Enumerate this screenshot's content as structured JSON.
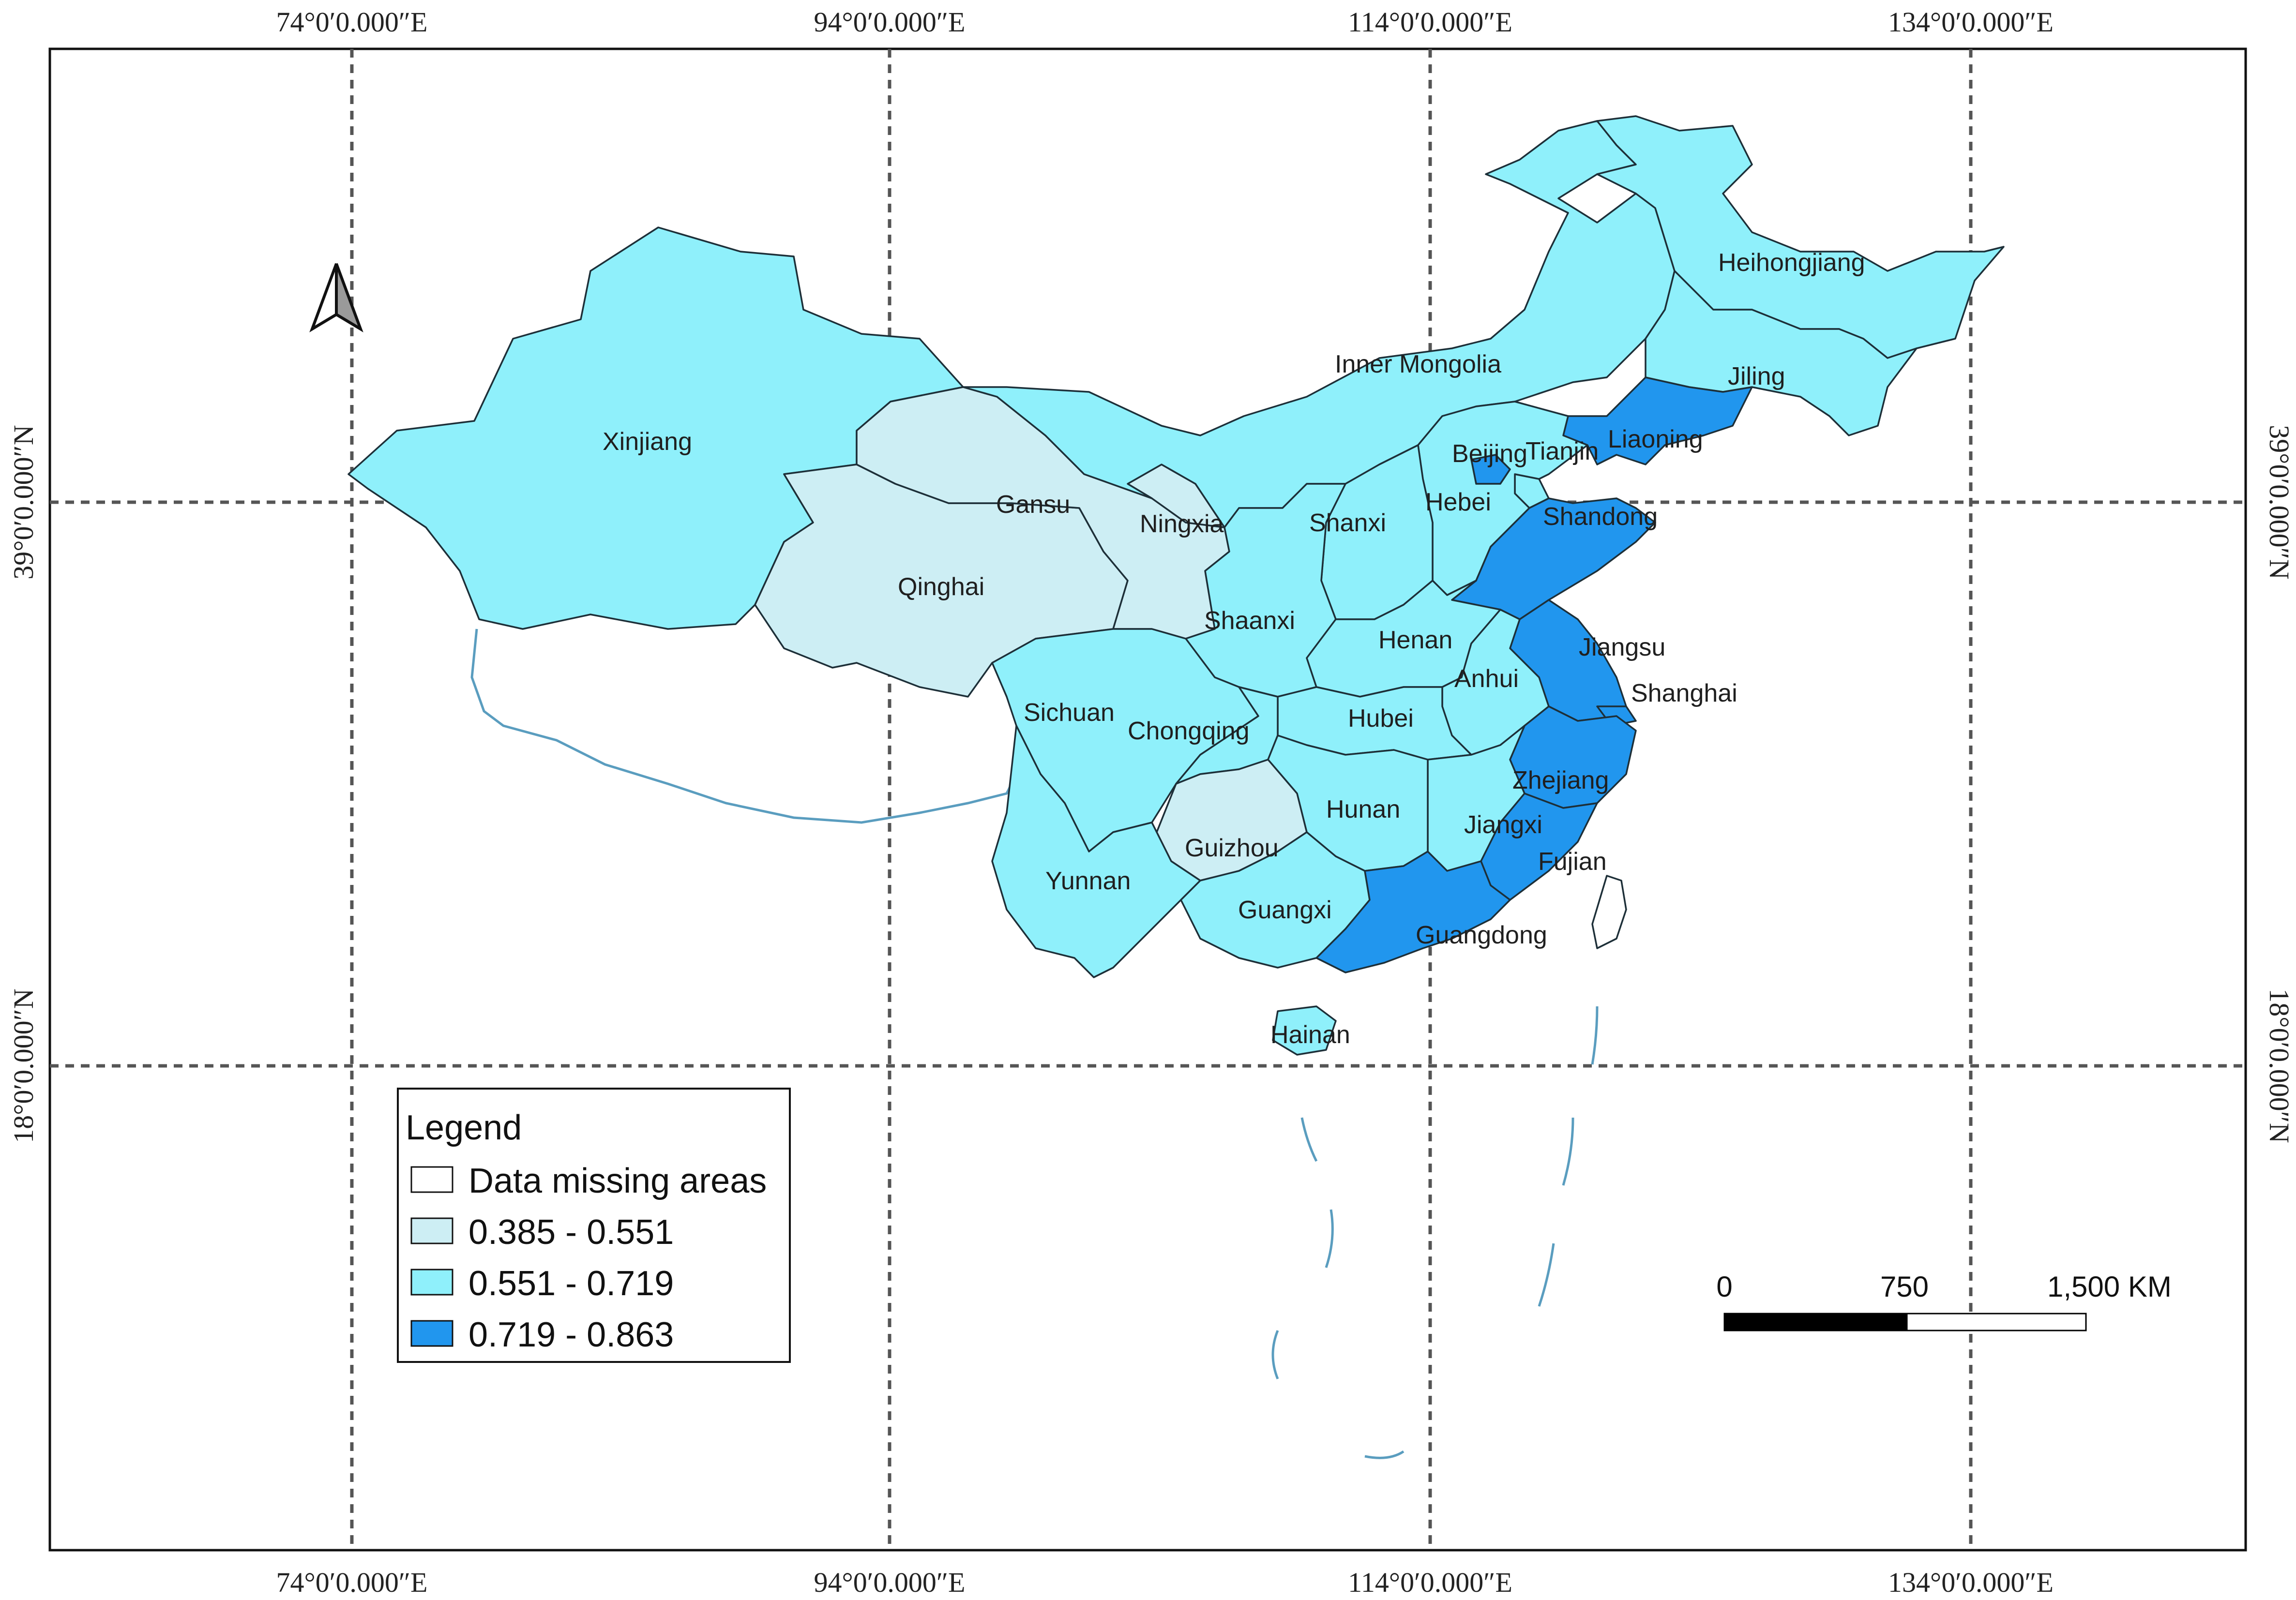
{
  "map": {
    "colors": {
      "low": "#cdeef4",
      "mid": "#8ff0fb",
      "high": "#2196ee",
      "missing": "#ffffff",
      "boundary": "#5a9dbf"
    },
    "top_ticks": [
      "74°0′0.000″E",
      "94°0′0.000″E",
      "114°0′0.000″E",
      "134°0′0.000″E"
    ],
    "bottom_ticks": [
      "74°0′0.000″E",
      "94°0′0.000″E",
      "114°0′0.000″E",
      "134°0′0.000″E"
    ],
    "left_ticks": [
      "39°0′0.000″N",
      "18°0′0.000″N"
    ],
    "right_ticks": [
      "39°0′0.000″N",
      "18°0′0.000″N"
    ],
    "north_arrow": "north-arrow-icon",
    "provinces": [
      {
        "name": "Xinjiang",
        "class": "mid"
      },
      {
        "name": "Gansu",
        "class": "low"
      },
      {
        "name": "Qinghai",
        "class": "low"
      },
      {
        "name": "Ningxia",
        "class": "low"
      },
      {
        "name": "Inner Mongolia",
        "class": "mid"
      },
      {
        "name": "Heihongjiang",
        "class": "mid"
      },
      {
        "name": "Jiling",
        "class": "mid"
      },
      {
        "name": "Liaoning",
        "class": "high"
      },
      {
        "name": "Beijing",
        "class": "high"
      },
      {
        "name": "Tianjin",
        "class": "mid"
      },
      {
        "name": "Hebei",
        "class": "mid"
      },
      {
        "name": "Shanxi",
        "class": "mid"
      },
      {
        "name": "Shaanxi",
        "class": "mid"
      },
      {
        "name": "Shandong",
        "class": "high"
      },
      {
        "name": "Henan",
        "class": "mid"
      },
      {
        "name": "Jiangsu",
        "class": "high"
      },
      {
        "name": "Anhui",
        "class": "mid"
      },
      {
        "name": "Shanghai",
        "class": "high"
      },
      {
        "name": "Sichuan",
        "class": "mid"
      },
      {
        "name": "Chongqing",
        "class": "mid"
      },
      {
        "name": "Hubei",
        "class": "mid"
      },
      {
        "name": "Zhejiang",
        "class": "high"
      },
      {
        "name": "Hunan",
        "class": "mid"
      },
      {
        "name": "Jiangxi",
        "class": "mid"
      },
      {
        "name": "Guizhou",
        "class": "low"
      },
      {
        "name": "Fujian",
        "class": "high"
      },
      {
        "name": "Yunnan",
        "class": "mid"
      },
      {
        "name": "Guangxi",
        "class": "mid"
      },
      {
        "name": "Guangdong",
        "class": "high"
      },
      {
        "name": "Hainan",
        "class": "mid"
      }
    ],
    "legend": {
      "title": "Legend",
      "items": [
        {
          "label": "Data missing areas",
          "class": "missing"
        },
        {
          "label": "0.385 - 0.551",
          "class": "low"
        },
        {
          "label": "0.551 - 0.719",
          "class": "mid"
        },
        {
          "label": "0.719 - 0.863",
          "class": "high"
        }
      ]
    },
    "scale_bar": {
      "labels": [
        "0",
        "750",
        "1,500 KM"
      ]
    }
  }
}
